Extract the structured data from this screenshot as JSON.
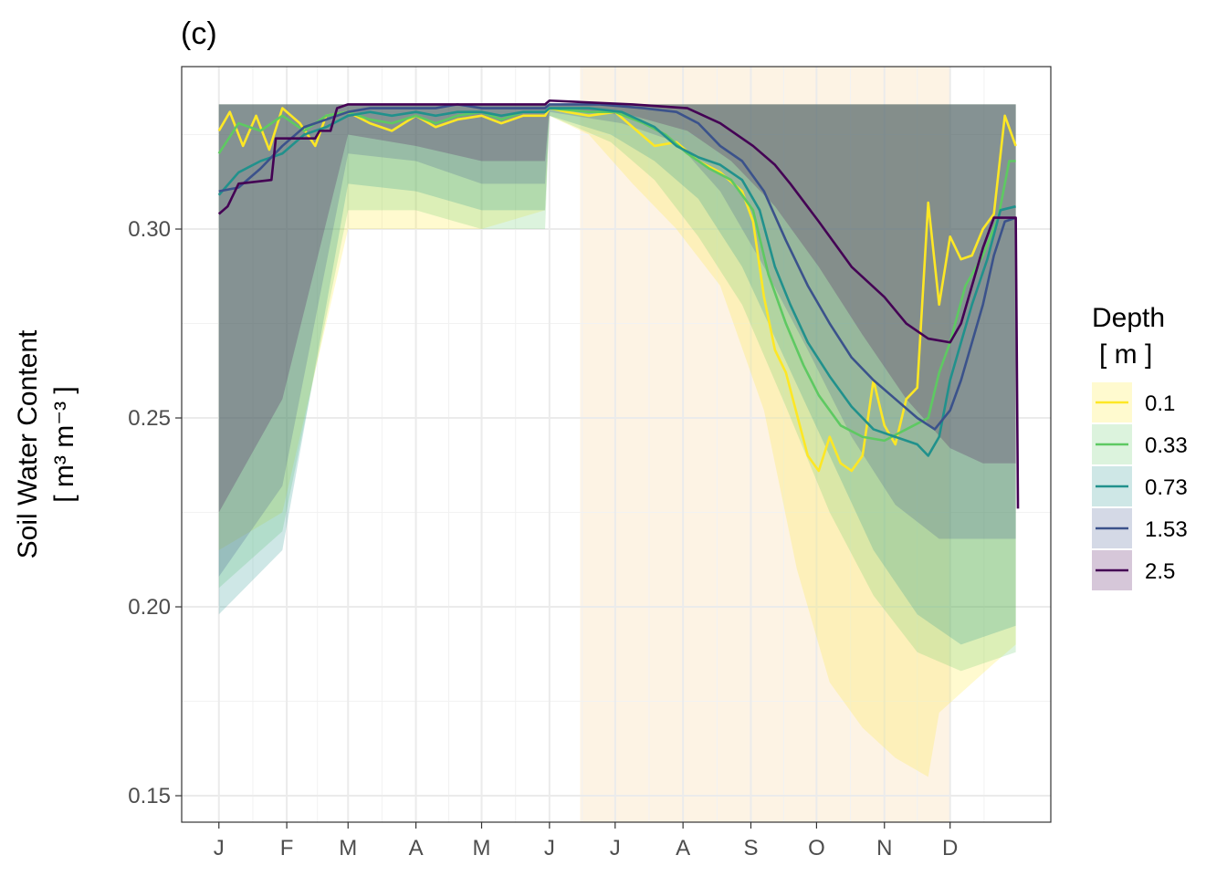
{
  "chart_data": {
    "type": "line",
    "title": "(c)",
    "xlabel": "",
    "ylabel_line1": "Soil Water Content",
    "ylabel_line2": "[ m³ m⁻³ ]",
    "x_ticks": [
      "J",
      "F",
      "M",
      "A",
      "M",
      "J",
      "J",
      "A",
      "S",
      "O",
      "N",
      "D"
    ],
    "x_tick_days": [
      1,
      32,
      60,
      91,
      121,
      152,
      182,
      213,
      244,
      274,
      305,
      335
    ],
    "xlim": [
      -16,
      381
    ],
    "ylim": [
      0.143,
      0.343
    ],
    "y_ticks": [
      0.15,
      0.2,
      0.25,
      0.3
    ],
    "y_tick_labels": [
      "0.15",
      "0.20",
      "0.25",
      "0.30"
    ],
    "grid": true,
    "highlight_period": {
      "start_day": 166,
      "end_day": 335,
      "color": "#fdf3e4"
    },
    "legend": {
      "title_line1": "Depth",
      "title_line2": "[ m ]",
      "position": "right"
    },
    "series": [
      {
        "name": "0.1",
        "color": "#fde725",
        "line": [
          [
            1,
            0.326
          ],
          [
            6,
            0.331
          ],
          [
            12,
            0.322
          ],
          [
            18,
            0.33
          ],
          [
            24,
            0.321
          ],
          [
            30,
            0.332
          ],
          [
            38,
            0.328
          ],
          [
            45,
            0.322
          ],
          [
            50,
            0.33
          ],
          [
            60,
            0.331
          ],
          [
            70,
            0.328
          ],
          [
            80,
            0.326
          ],
          [
            91,
            0.33
          ],
          [
            100,
            0.327
          ],
          [
            110,
            0.329
          ],
          [
            121,
            0.33
          ],
          [
            130,
            0.328
          ],
          [
            140,
            0.33
          ],
          [
            150,
            0.33
          ],
          [
            152,
            0.332
          ],
          [
            160,
            0.331
          ],
          [
            170,
            0.33
          ],
          [
            182,
            0.331
          ],
          [
            190,
            0.327
          ],
          [
            200,
            0.322
          ],
          [
            210,
            0.323
          ],
          [
            220,
            0.318
          ],
          [
            230,
            0.315
          ],
          [
            236,
            0.312
          ],
          [
            240,
            0.31
          ],
          [
            245,
            0.302
          ],
          [
            250,
            0.282
          ],
          [
            255,
            0.268
          ],
          [
            260,
            0.262
          ],
          [
            265,
            0.251
          ],
          [
            270,
            0.24
          ],
          [
            275,
            0.236
          ],
          [
            280,
            0.245
          ],
          [
            285,
            0.238
          ],
          [
            290,
            0.236
          ],
          [
            295,
            0.24
          ],
          [
            300,
            0.26
          ],
          [
            305,
            0.248
          ],
          [
            310,
            0.243
          ],
          [
            315,
            0.255
          ],
          [
            320,
            0.258
          ],
          [
            325,
            0.307
          ],
          [
            330,
            0.28
          ],
          [
            335,
            0.298
          ],
          [
            340,
            0.292
          ],
          [
            345,
            0.293
          ],
          [
            350,
            0.3
          ],
          [
            355,
            0.304
          ],
          [
            360,
            0.33
          ],
          [
            365,
            0.322
          ]
        ],
        "band_low": [
          [
            1,
            0.215
          ],
          [
            30,
            0.225
          ],
          [
            60,
            0.3
          ],
          [
            91,
            0.3
          ],
          [
            121,
            0.3
          ],
          [
            150,
            0.305
          ],
          [
            152,
            0.33
          ],
          [
            170,
            0.325
          ],
          [
            190,
            0.312
          ],
          [
            210,
            0.3
          ],
          [
            230,
            0.285
          ],
          [
            250,
            0.252
          ],
          [
            265,
            0.21
          ],
          [
            280,
            0.18
          ],
          [
            295,
            0.168
          ],
          [
            310,
            0.16
          ],
          [
            325,
            0.155
          ],
          [
            330,
            0.172
          ],
          [
            355,
            0.185
          ],
          [
            365,
            0.19
          ]
        ],
        "band_high": [
          [
            1,
            0.333
          ],
          [
            365,
            0.333
          ]
        ]
      },
      {
        "name": "0.33",
        "color": "#5ec962",
        "line": [
          [
            1,
            0.32
          ],
          [
            10,
            0.328
          ],
          [
            20,
            0.326
          ],
          [
            30,
            0.33
          ],
          [
            40,
            0.326
          ],
          [
            50,
            0.33
          ],
          [
            60,
            0.331
          ],
          [
            70,
            0.329
          ],
          [
            80,
            0.328
          ],
          [
            91,
            0.33
          ],
          [
            100,
            0.328
          ],
          [
            110,
            0.33
          ],
          [
            121,
            0.331
          ],
          [
            130,
            0.329
          ],
          [
            140,
            0.331
          ],
          [
            150,
            0.331
          ],
          [
            152,
            0.332
          ],
          [
            170,
            0.331
          ],
          [
            182,
            0.331
          ],
          [
            195,
            0.328
          ],
          [
            205,
            0.325
          ],
          [
            215,
            0.32
          ],
          [
            225,
            0.316
          ],
          [
            235,
            0.313
          ],
          [
            245,
            0.305
          ],
          [
            252,
            0.288
          ],
          [
            260,
            0.275
          ],
          [
            268,
            0.264
          ],
          [
            275,
            0.256
          ],
          [
            285,
            0.248
          ],
          [
            295,
            0.245
          ],
          [
            305,
            0.244
          ],
          [
            315,
            0.247
          ],
          [
            325,
            0.25
          ],
          [
            330,
            0.262
          ],
          [
            335,
            0.27
          ],
          [
            342,
            0.285
          ],
          [
            350,
            0.293
          ],
          [
            357,
            0.303
          ],
          [
            362,
            0.318
          ],
          [
            365,
            0.318
          ]
        ],
        "band_low": [
          [
            1,
            0.205
          ],
          [
            30,
            0.22
          ],
          [
            60,
            0.305
          ],
          [
            91,
            0.305
          ],
          [
            121,
            0.3
          ],
          [
            150,
            0.3
          ],
          [
            152,
            0.33
          ],
          [
            180,
            0.323
          ],
          [
            200,
            0.313
          ],
          [
            220,
            0.298
          ],
          [
            240,
            0.28
          ],
          [
            260,
            0.253
          ],
          [
            280,
            0.225
          ],
          [
            300,
            0.203
          ],
          [
            320,
            0.188
          ],
          [
            340,
            0.183
          ],
          [
            365,
            0.188
          ]
        ],
        "band_high": [
          [
            1,
            0.333
          ],
          [
            365,
            0.333
          ]
        ]
      },
      {
        "name": "0.73",
        "color": "#21918c",
        "line": [
          [
            1,
            0.309
          ],
          [
            10,
            0.315
          ],
          [
            20,
            0.318
          ],
          [
            30,
            0.32
          ],
          [
            40,
            0.325
          ],
          [
            50,
            0.327
          ],
          [
            60,
            0.33
          ],
          [
            70,
            0.331
          ],
          [
            80,
            0.33
          ],
          [
            91,
            0.331
          ],
          [
            100,
            0.33
          ],
          [
            110,
            0.331
          ],
          [
            121,
            0.331
          ],
          [
            130,
            0.33
          ],
          [
            140,
            0.331
          ],
          [
            150,
            0.331
          ],
          [
            152,
            0.332
          ],
          [
            170,
            0.332
          ],
          [
            185,
            0.331
          ],
          [
            200,
            0.327
          ],
          [
            210,
            0.322
          ],
          [
            220,
            0.319
          ],
          [
            230,
            0.317
          ],
          [
            240,
            0.313
          ],
          [
            248,
            0.305
          ],
          [
            255,
            0.29
          ],
          [
            262,
            0.28
          ],
          [
            270,
            0.27
          ],
          [
            280,
            0.261
          ],
          [
            290,
            0.253
          ],
          [
            300,
            0.247
          ],
          [
            310,
            0.245
          ],
          [
            320,
            0.243
          ],
          [
            325,
            0.24
          ],
          [
            330,
            0.245
          ],
          [
            335,
            0.26
          ],
          [
            340,
            0.27
          ],
          [
            345,
            0.28
          ],
          [
            352,
            0.292
          ],
          [
            358,
            0.305
          ],
          [
            365,
            0.306
          ]
        ],
        "band_low": [
          [
            1,
            0.198
          ],
          [
            30,
            0.215
          ],
          [
            60,
            0.312
          ],
          [
            91,
            0.31
          ],
          [
            121,
            0.305
          ],
          [
            150,
            0.305
          ],
          [
            152,
            0.33
          ],
          [
            180,
            0.325
          ],
          [
            200,
            0.318
          ],
          [
            220,
            0.308
          ],
          [
            240,
            0.29
          ],
          [
            260,
            0.265
          ],
          [
            280,
            0.24
          ],
          [
            300,
            0.215
          ],
          [
            320,
            0.198
          ],
          [
            340,
            0.19
          ],
          [
            365,
            0.195
          ]
        ],
        "band_high": [
          [
            1,
            0.333
          ],
          [
            365,
            0.333
          ]
        ]
      },
      {
        "name": "1.53",
        "color": "#3b528b",
        "line": [
          [
            1,
            0.31
          ],
          [
            10,
            0.311
          ],
          [
            20,
            0.316
          ],
          [
            30,
            0.322
          ],
          [
            40,
            0.327
          ],
          [
            50,
            0.329
          ],
          [
            60,
            0.331
          ],
          [
            70,
            0.332
          ],
          [
            80,
            0.332
          ],
          [
            91,
            0.332
          ],
          [
            100,
            0.332
          ],
          [
            110,
            0.333
          ],
          [
            121,
            0.332
          ],
          [
            140,
            0.332
          ],
          [
            150,
            0.332
          ],
          [
            152,
            0.333
          ],
          [
            175,
            0.333
          ],
          [
            195,
            0.332
          ],
          [
            210,
            0.331
          ],
          [
            220,
            0.328
          ],
          [
            230,
            0.322
          ],
          [
            240,
            0.318
          ],
          [
            250,
            0.31
          ],
          [
            260,
            0.297
          ],
          [
            270,
            0.285
          ],
          [
            280,
            0.275
          ],
          [
            290,
            0.266
          ],
          [
            300,
            0.26
          ],
          [
            310,
            0.255
          ],
          [
            320,
            0.25
          ],
          [
            328,
            0.247
          ],
          [
            335,
            0.252
          ],
          [
            340,
            0.26
          ],
          [
            345,
            0.27
          ],
          [
            350,
            0.28
          ],
          [
            355,
            0.293
          ],
          [
            360,
            0.302
          ],
          [
            365,
            0.303
          ]
        ],
        "band_low": [
          [
            1,
            0.208
          ],
          [
            30,
            0.232
          ],
          [
            60,
            0.32
          ],
          [
            91,
            0.318
          ],
          [
            121,
            0.312
          ],
          [
            150,
            0.312
          ],
          [
            152,
            0.331
          ],
          [
            185,
            0.328
          ],
          [
            210,
            0.323
          ],
          [
            230,
            0.31
          ],
          [
            250,
            0.29
          ],
          [
            270,
            0.268
          ],
          [
            290,
            0.245
          ],
          [
            310,
            0.227
          ],
          [
            330,
            0.218
          ],
          [
            350,
            0.218
          ],
          [
            365,
            0.218
          ]
        ],
        "band_high": [
          [
            1,
            0.333
          ],
          [
            365,
            0.333
          ]
        ]
      },
      {
        "name": "2.5",
        "color": "#440154",
        "line": [
          [
            1,
            0.304
          ],
          [
            5,
            0.306
          ],
          [
            10,
            0.312
          ],
          [
            25,
            0.313
          ],
          [
            27,
            0.324
          ],
          [
            45,
            0.324
          ],
          [
            47,
            0.326
          ],
          [
            52,
            0.326
          ],
          [
            55,
            0.332
          ],
          [
            60,
            0.333
          ],
          [
            91,
            0.333
          ],
          [
            100,
            0.333
          ],
          [
            121,
            0.333
          ],
          [
            150,
            0.333
          ],
          [
            152,
            0.334
          ],
          [
            190,
            0.333
          ],
          [
            215,
            0.332
          ],
          [
            230,
            0.328
          ],
          [
            245,
            0.322
          ],
          [
            255,
            0.317
          ],
          [
            262,
            0.312
          ],
          [
            275,
            0.302
          ],
          [
            290,
            0.29
          ],
          [
            305,
            0.282
          ],
          [
            315,
            0.275
          ],
          [
            325,
            0.271
          ],
          [
            335,
            0.27
          ],
          [
            340,
            0.275
          ],
          [
            345,
            0.285
          ],
          [
            350,
            0.295
          ],
          [
            355,
            0.303
          ],
          [
            365,
            0.303
          ],
          [
            366,
            0.226
          ]
        ],
        "band_low": [
          [
            1,
            0.225
          ],
          [
            30,
            0.255
          ],
          [
            60,
            0.325
          ],
          [
            91,
            0.322
          ],
          [
            121,
            0.318
          ],
          [
            150,
            0.318
          ],
          [
            152,
            0.332
          ],
          [
            190,
            0.33
          ],
          [
            215,
            0.326
          ],
          [
            235,
            0.318
          ],
          [
            255,
            0.306
          ],
          [
            275,
            0.29
          ],
          [
            295,
            0.272
          ],
          [
            315,
            0.255
          ],
          [
            335,
            0.242
          ],
          [
            350,
            0.238
          ],
          [
            365,
            0.238
          ]
        ],
        "band_high": [
          [
            1,
            0.333
          ],
          [
            365,
            0.333
          ]
        ]
      }
    ]
  }
}
